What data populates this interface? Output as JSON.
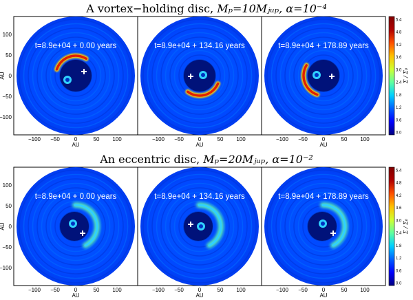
{
  "rows": [
    {
      "title_prefix": "A vortex−holding disc,",
      "title_math": " Mₚ=10Mⱼᵤₚ, α=10⁻⁴",
      "panels": [
        {
          "time_label": "t=8.9e+04 + 0.00 years",
          "star_offset": [
            -12,
            6
          ],
          "planet_offset": [
            12,
            -6
          ],
          "feature": "vortex",
          "feature_angle": 250
        },
        {
          "time_label": "t=8.9e+04 + 134.16 years",
          "star_offset": [
            5,
            -1
          ],
          "planet_offset": [
            -13,
            1
          ],
          "feature": "vortex",
          "feature_angle": 75
        },
        {
          "time_label": "t=8.9e+04 + 178.89 years",
          "star_offset": [
            -10,
            -1
          ],
          "planet_offset": [
            12,
            1
          ],
          "feature": "vortex",
          "feature_angle": 160
        }
      ],
      "colorbar": {
        "label": "Σ / Σ₀",
        "ticks": [
          "5.4",
          "4.8",
          "4.2",
          "3.6",
          "3.0",
          "2.4",
          "1.8",
          "1.2",
          "0.6",
          "0.0"
        ]
      }
    },
    {
      "title_prefix": "An eccentric disc,",
      "title_math": " Mₚ=20Mⱼᵤₚ, α=10⁻²",
      "panels": [
        {
          "time_label": "t=8.9e+04 + 0.00 years",
          "star_offset": [
            -4,
            -4
          ],
          "planet_offset": [
            10,
            10
          ],
          "feature": "eccentric",
          "feature_angle": 30
        },
        {
          "time_label": "t=8.9e+04 + 134.16 years",
          "star_offset": [
            2,
            0
          ],
          "planet_offset": [
            -13,
            -3
          ],
          "feature": "eccentric",
          "feature_angle": 30
        },
        {
          "time_label": "t=8.9e+04 + 178.89 years",
          "star_offset": [
            -1,
            -4
          ],
          "planet_offset": [
            14,
            10
          ],
          "feature": "eccentric",
          "feature_angle": 30
        }
      ],
      "colorbar": {
        "label": "Σ / Σ₀",
        "ticks": [
          "5.4",
          "4.8",
          "4.2",
          "3.6",
          "3.0",
          "2.4",
          "1.8",
          "1.2",
          "0.6",
          "0.0"
        ]
      }
    }
  ],
  "axes": {
    "y_label": "AU",
    "x_label": "AU",
    "y_ticks": [
      "100",
      "50",
      "0",
      "−50",
      "−100"
    ],
    "x_ticks": [
      "−100",
      "−50",
      "0",
      "50",
      "100"
    ]
  },
  "colormap": [
    "#00007f",
    "#0000ff",
    "#0060ff",
    "#00d0ff",
    "#60ffa0",
    "#d0ff30",
    "#ffc000",
    "#ff5000",
    "#b00000",
    "#800000"
  ]
}
